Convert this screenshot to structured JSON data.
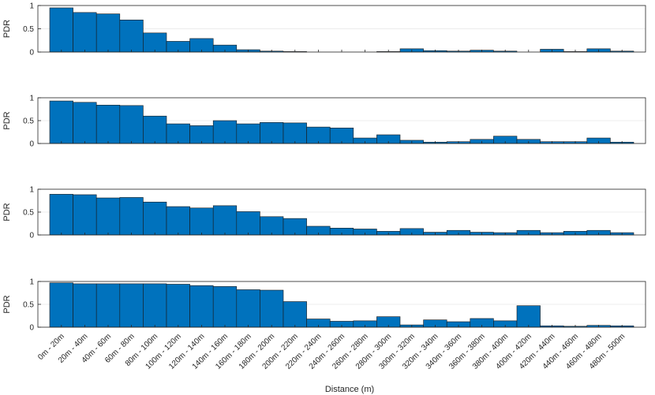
{
  "chart_data": {
    "type": "bar",
    "categories": [
      "0m - 20m",
      "20m - 40m",
      "40m - 60m",
      "60m - 80m",
      "80m - 100m",
      "100m - 120m",
      "120m - 140m",
      "140m - 160m",
      "160m - 180m",
      "180m - 200m",
      "200m - 220m",
      "220m - 240m",
      "240m - 260m",
      "260m - 280m",
      "280m - 300m",
      "300m - 320m",
      "320m - 340m",
      "340m - 360m",
      "360m - 380m",
      "380m - 400m",
      "400m - 420m",
      "420m - 440m",
      "440m - 460m",
      "460m - 480m",
      "480m - 500m"
    ],
    "xlabel": "Distance (m)",
    "ylabel": "PDR",
    "ylim": [
      0,
      1
    ],
    "yticks": [
      "0",
      "0.5",
      "1"
    ],
    "bar_color": "#0072bd",
    "grid": "horizontal",
    "panels": [
      {
        "values": [
          0.95,
          0.85,
          0.82,
          0.69,
          0.41,
          0.23,
          0.29,
          0.15,
          0.05,
          0.02,
          0.01,
          0.0,
          0.0,
          0.0,
          0.01,
          0.07,
          0.03,
          0.02,
          0.04,
          0.02,
          0.0,
          0.06,
          0.01,
          0.07,
          0.02
        ]
      },
      {
        "values": [
          0.93,
          0.9,
          0.84,
          0.83,
          0.6,
          0.43,
          0.39,
          0.5,
          0.43,
          0.46,
          0.45,
          0.36,
          0.34,
          0.12,
          0.19,
          0.07,
          0.03,
          0.04,
          0.09,
          0.16,
          0.09,
          0.04,
          0.04,
          0.12,
          0.03
        ]
      },
      {
        "values": [
          0.89,
          0.88,
          0.81,
          0.82,
          0.72,
          0.62,
          0.59,
          0.64,
          0.51,
          0.4,
          0.36,
          0.19,
          0.15,
          0.13,
          0.08,
          0.14,
          0.06,
          0.1,
          0.06,
          0.05,
          0.1,
          0.05,
          0.08,
          0.1,
          0.05
        ]
      },
      {
        "values": [
          0.97,
          0.95,
          0.95,
          0.95,
          0.95,
          0.94,
          0.91,
          0.89,
          0.82,
          0.81,
          0.56,
          0.18,
          0.13,
          0.14,
          0.23,
          0.05,
          0.16,
          0.12,
          0.19,
          0.14,
          0.47,
          0.03,
          0.02,
          0.04,
          0.03
        ]
      }
    ]
  }
}
